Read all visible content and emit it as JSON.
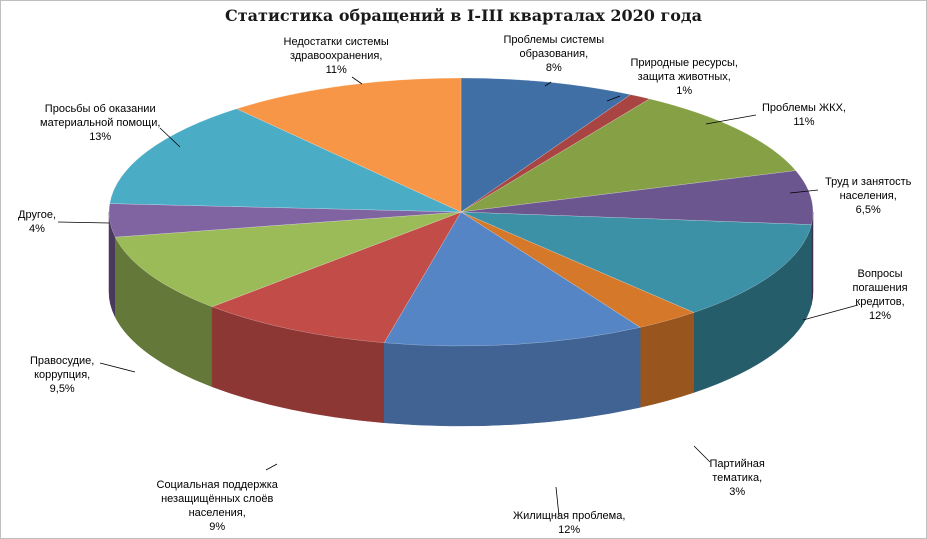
{
  "chart_data": {
    "type": "pie",
    "title": "Статистика обращений в I-III кварталах 2020 года",
    "slices": [
      {
        "label_lines": [
          "Проблемы системы",
          "образования,"
        ],
        "pct_text": "8%",
        "value": 8,
        "color": "#406fa6"
      },
      {
        "label_lines": [
          "Природные ресурсы,",
          "защита животных,"
        ],
        "pct_text": "1%",
        "value": 1,
        "color": "#a84543"
      },
      {
        "label_lines": [
          "Проблемы ЖКХ,"
        ],
        "pct_text": "11%",
        "value": 11,
        "color": "#86a046"
      },
      {
        "label_lines": [
          "Труд и занятость",
          "населения,"
        ],
        "pct_text": "6,5%",
        "value": 6.5,
        "color": "#6c5690"
      },
      {
        "label_lines": [
          "Вопросы",
          "погашения",
          "кредитов,"
        ],
        "pct_text": "12%",
        "value": 12,
        "color": "#3c91a6"
      },
      {
        "label_lines": [
          "Партийная",
          "тематика,"
        ],
        "pct_text": "3%",
        "value": 3,
        "color": "#d5782a"
      },
      {
        "label_lines": [
          "Жилищная проблема,"
        ],
        "pct_text": "12%",
        "value": 12,
        "color": "#5585c5"
      },
      {
        "label_lines": [
          "Социальная поддержка",
          "незащищённых слоёв",
          "населения,"
        ],
        "pct_text": "9%",
        "value": 9,
        "color": "#c24c48"
      },
      {
        "label_lines": [
          "Правосудие,",
          "коррупция,"
        ],
        "pct_text": "9,5%",
        "value": 9.5,
        "color": "#9bbb59"
      },
      {
        "label_lines": [
          "Другое,"
        ],
        "pct_text": "4%",
        "value": 4,
        "color": "#8064a2"
      },
      {
        "label_lines": [
          "Просьбы об оказании",
          "материальной помощи,"
        ],
        "pct_text": "13%",
        "value": 13,
        "color": "#4bacc6"
      },
      {
        "label_lines": [
          "Недостатки системы",
          "здравоохранения,"
        ],
        "pct_text": "11%",
        "value": 11,
        "color": "#f79646"
      }
    ]
  }
}
